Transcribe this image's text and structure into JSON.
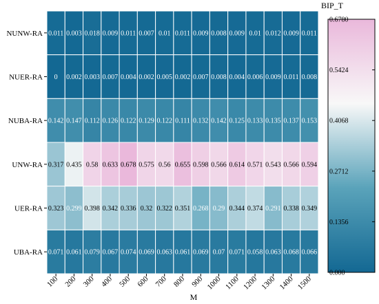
{
  "chart_data": {
    "type": "heatmap",
    "x": [
      "100",
      "200",
      "300",
      "400",
      "500",
      "600",
      "700",
      "800",
      "900",
      "1000",
      "1100",
      "1200",
      "1300",
      "1400",
      "1500"
    ],
    "y": [
      "NUNW-RA",
      "NUER-RA",
      "NUBA-RA",
      "UNW-RA",
      "UER-RA",
      "UBA-RA"
    ],
    "xlabel": "M",
    "ylabel": "",
    "values": [
      [
        0.011,
        0.003,
        0.018,
        0.009,
        0.011,
        0.007,
        0.01,
        0.011,
        0.009,
        0.008,
        0.009,
        0.01,
        0.012,
        0.009,
        0.011
      ],
      [
        0,
        0.002,
        0.003,
        0.007,
        0.004,
        0.002,
        0.005,
        0.002,
        0.007,
        0.008,
        0.004,
        0.006,
        0.009,
        0.011,
        0.008
      ],
      [
        0.142,
        0.147,
        0.112,
        0.126,
        0.122,
        0.129,
        0.122,
        0.111,
        0.132,
        0.142,
        0.125,
        0.133,
        0.135,
        0.137,
        0.153
      ],
      [
        0.317,
        0.435,
        0.58,
        0.633,
        0.678,
        0.575,
        0.56,
        0.655,
        0.598,
        0.566,
        0.614,
        0.571,
        0.543,
        0.566,
        0.594
      ],
      [
        0.323,
        0.299,
        0.398,
        0.342,
        0.336,
        0.32,
        0.322,
        0.351,
        0.268,
        0.29,
        0.344,
        0.374,
        0.291,
        0.338,
        0.349
      ],
      [
        0.071,
        0.061,
        0.079,
        0.067,
        0.074,
        0.069,
        0.063,
        0.061,
        0.069,
        0.07,
        0.071,
        0.058,
        0.063,
        0.068,
        0.066
      ]
    ],
    "labels": [
      [
        "0.011",
        "0.003",
        "0.018",
        "0.009",
        "0.011",
        "0.007",
        "0.01",
        "0.011",
        "0.009",
        "0.008",
        "0.009",
        "0.01",
        "0.012",
        "0.009",
        "0.011"
      ],
      [
        "0",
        "0.002",
        "0.003",
        "0.007",
        "0.004",
        "0.002",
        "0.005",
        "0.002",
        "0.007",
        "0.008",
        "0.004",
        "0.006",
        "0.009",
        "0.011",
        "0.008"
      ],
      [
        "0.142",
        "0.147",
        "0.112",
        "0.126",
        "0.122",
        "0.129",
        "0.122",
        "0.111",
        "0.132",
        "0.142",
        "0.125",
        "0.133",
        "0.135",
        "0.137",
        "0.153"
      ],
      [
        "0.317",
        "0.435",
        "0.58",
        "0.633",
        "0.678",
        "0.575",
        "0.56",
        "0.655",
        "0.598",
        "0.566",
        "0.614",
        "0.571",
        "0.543",
        "0.566",
        "0.594"
      ],
      [
        "0.323",
        "0.299",
        "0.398",
        "0.342",
        "0.336",
        "0.32",
        "0.322",
        "0.351",
        "0.268",
        "0.29",
        "0.344",
        "0.374",
        "0.291",
        "0.338",
        "0.349"
      ],
      [
        "0.071",
        "0.061",
        "0.079",
        "0.067",
        "0.074",
        "0.069",
        "0.063",
        "0.061",
        "0.069",
        "0.07",
        "0.071",
        "0.058",
        "0.063",
        "0.068",
        "0.066"
      ]
    ],
    "colorbar": {
      "title": "BIP_T",
      "range": [
        0,
        0.678
      ],
      "ticks": [
        "0.000",
        "0.1356",
        "0.2712",
        "0.4068",
        "0.5424",
        "0.6780"
      ],
      "colors": [
        "#136893",
        "#5aa3ba",
        "#f8f8f8",
        "#eab8db"
      ]
    }
  }
}
